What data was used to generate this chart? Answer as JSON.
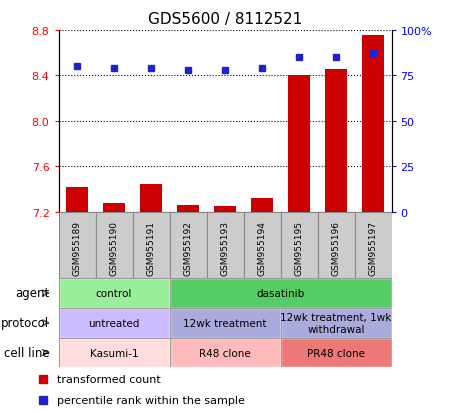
{
  "title": "GDS5600 / 8112521",
  "samples": [
    "GSM955189",
    "GSM955190",
    "GSM955191",
    "GSM955192",
    "GSM955193",
    "GSM955194",
    "GSM955195",
    "GSM955196",
    "GSM955197"
  ],
  "transformed_counts": [
    7.42,
    7.28,
    7.44,
    7.26,
    7.25,
    7.32,
    8.4,
    8.45,
    8.75
  ],
  "percentile_ranks": [
    80,
    79,
    79,
    78,
    78,
    79,
    85,
    85,
    87
  ],
  "ylim_left": [
    7.2,
    8.8
  ],
  "yticks_left": [
    7.2,
    7.6,
    8.0,
    8.4,
    8.8
  ],
  "yticks_right": [
    0,
    25,
    50,
    75,
    100
  ],
  "bar_color": "#CC0000",
  "dot_color": "#2222CC",
  "agent_labels": [
    {
      "label": "control",
      "start": 0,
      "end": 3,
      "color": "#99EE99"
    },
    {
      "label": "dasatinib",
      "start": 3,
      "end": 9,
      "color": "#55CC66"
    }
  ],
  "protocol_labels": [
    {
      "label": "untreated",
      "start": 0,
      "end": 3,
      "color": "#CCBBFF"
    },
    {
      "label": "12wk treatment",
      "start": 3,
      "end": 6,
      "color": "#AAAADD"
    },
    {
      "label": "12wk treatment, 1wk\nwithdrawal",
      "start": 6,
      "end": 9,
      "color": "#AAAADD"
    }
  ],
  "cell_line_labels": [
    {
      "label": "Kasumi-1",
      "start": 0,
      "end": 3,
      "color": "#FFDDDD"
    },
    {
      "label": "R48 clone",
      "start": 3,
      "end": 6,
      "color": "#FFBBBB"
    },
    {
      "label": "PR48 clone",
      "start": 6,
      "end": 9,
      "color": "#EE7777"
    }
  ],
  "row_labels": [
    "agent",
    "protocol",
    "cell line"
  ],
  "legend_items": [
    {
      "label": "transformed count",
      "color": "#CC0000"
    },
    {
      "label": "percentile rank within the sample",
      "color": "#2222CC"
    }
  ],
  "sample_box_color": "#CCCCCC",
  "sample_box_edge": "#888888"
}
